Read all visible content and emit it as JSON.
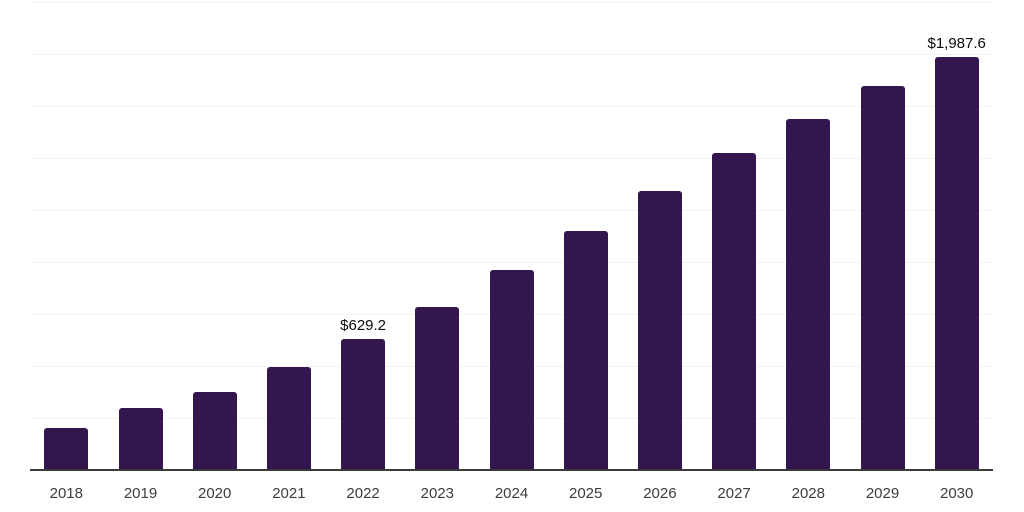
{
  "chart_data": {
    "type": "bar",
    "title": "",
    "xlabel": "",
    "ylabel": "",
    "categories": [
      "2018",
      "2019",
      "2020",
      "2021",
      "2022",
      "2023",
      "2024",
      "2025",
      "2026",
      "2027",
      "2028",
      "2029",
      "2030"
    ],
    "values": [
      204,
      298,
      375,
      495,
      629.2,
      784,
      962,
      1149,
      1341,
      1524,
      1688,
      1846,
      1987.6
    ],
    "labeled_points": [
      {
        "category": "2022",
        "label": "$629.2"
      },
      {
        "category": "2030",
        "label": "$1,987.6"
      }
    ],
    "ylim": [
      0,
      2250
    ],
    "gridline_interval": 250,
    "grid": "horizontal-only",
    "legend": "none",
    "y_axis_tick_labels": "none",
    "colors": {
      "bar": "#34164e",
      "axis_line": "#3a3a3a",
      "gridline": "#f2f2f4",
      "x_tick_label": "#3c3c3c",
      "data_label": "#0a0a0a",
      "background": "#ffffff"
    }
  }
}
